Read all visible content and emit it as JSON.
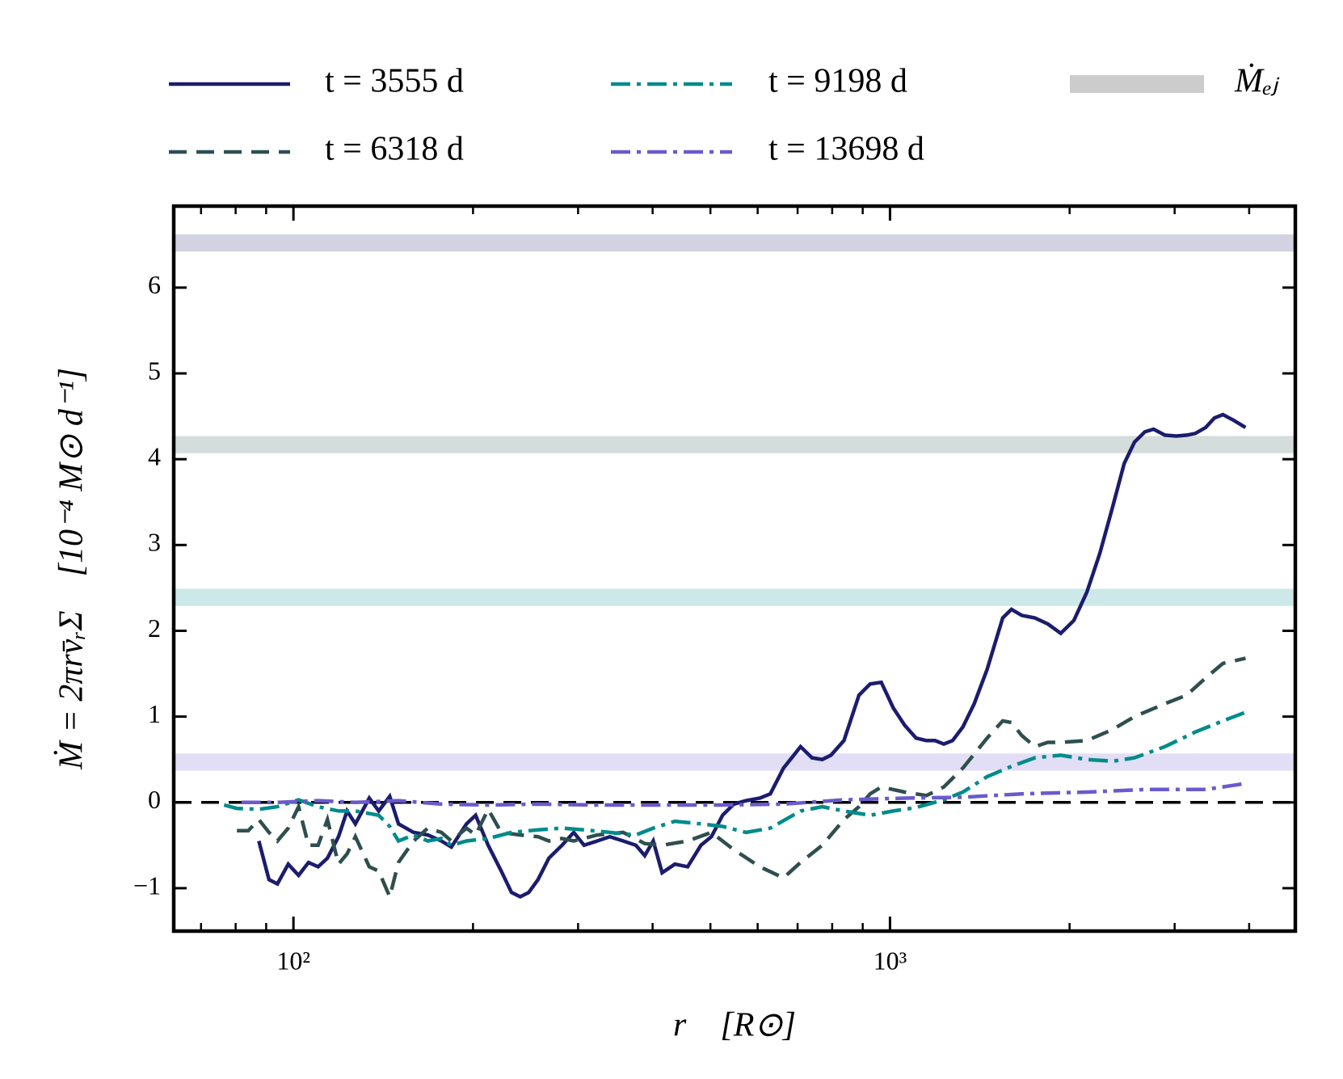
{
  "chart_data": {
    "type": "line",
    "xlabel": "r    [R⊙]",
    "ylabel": "Ṁ = 2πrv̄ᵣΣ    [10⁻⁴ M⊙ d⁻¹]",
    "xscale": "log",
    "xlim": [
      63,
      4780
    ],
    "ylim": [
      -1.5,
      6.95
    ],
    "xticks": [
      {
        "value": 100,
        "label": "10²"
      },
      {
        "value": 1000,
        "label": "10³"
      }
    ],
    "xminorticks": [
      70,
      80,
      90,
      200,
      300,
      400,
      500,
      600,
      700,
      800,
      900,
      2000,
      3000,
      4000
    ],
    "yticks": [
      {
        "value": -1,
        "label": "−1"
      },
      0,
      1,
      2,
      3,
      4,
      5,
      6
    ],
    "reference_line": 0,
    "ej_legend": {
      "label": "Ṁₑⱼ",
      "color": "#cccccc"
    },
    "series": [
      {
        "name": "t = 3555 d",
        "color": "#1c1c6e",
        "dash": "solid",
        "ej": 6.52,
        "x": [
          87.5,
          91,
          94,
          98,
          102,
          106,
          110,
          114,
          119,
          123,
          127,
          134,
          139,
          145,
          150,
          159,
          168,
          177,
          184,
          195,
          202,
          212,
          223,
          232,
          240,
          248,
          257,
          268,
          282,
          295,
          307,
          323,
          339,
          357,
          375,
          388,
          401,
          415,
          436,
          458,
          482,
          502,
          524,
          547,
          574,
          605,
          630,
          663,
          708,
          740,
          770,
          796,
          837,
          887,
          926,
          967,
          1013,
          1058,
          1106,
          1151,
          1190,
          1231,
          1273,
          1325,
          1384,
          1455,
          1545,
          1598,
          1663,
          1749,
          1839,
          1933,
          2033,
          2138,
          2247,
          2363,
          2469,
          2570,
          2675,
          2766,
          2889,
          3018,
          3142,
          3249,
          3382,
          3497,
          3615,
          3776,
          3944
        ],
        "values": [
          -0.45,
          -0.9,
          -0.95,
          -0.72,
          -0.85,
          -0.7,
          -0.75,
          -0.65,
          -0.4,
          -0.1,
          -0.25,
          0.05,
          -0.1,
          0.07,
          -0.25,
          -0.35,
          -0.38,
          -0.45,
          -0.52,
          -0.25,
          -0.15,
          -0.5,
          -0.8,
          -1.05,
          -1.1,
          -1.05,
          -0.9,
          -0.65,
          -0.5,
          -0.35,
          -0.5,
          -0.45,
          -0.4,
          -0.45,
          -0.5,
          -0.62,
          -0.45,
          -0.82,
          -0.72,
          -0.75,
          -0.5,
          -0.4,
          -0.15,
          -0.02,
          0.02,
          0.05,
          0.1,
          0.4,
          0.65,
          0.52,
          0.5,
          0.55,
          0.72,
          1.25,
          1.38,
          1.4,
          1.1,
          0.9,
          0.75,
          0.72,
          0.72,
          0.68,
          0.72,
          0.88,
          1.15,
          1.55,
          2.15,
          2.25,
          2.18,
          2.15,
          2.08,
          1.97,
          2.12,
          2.45,
          2.9,
          3.45,
          3.95,
          4.2,
          4.32,
          4.35,
          4.28,
          4.27,
          4.28,
          4.3,
          4.37,
          4.48,
          4.52,
          4.45,
          4.37
        ]
      },
      {
        "name": "t = 6318 d",
        "color": "#2f4f4f",
        "dash": "dashed",
        "ej": 4.17,
        "x": [
          80.4,
          84,
          87.5,
          91,
          94,
          98,
          102,
          106,
          110,
          114,
          119,
          123,
          127,
          134,
          139,
          145,
          150,
          159,
          168,
          177,
          184,
          195,
          202,
          212,
          223,
          240,
          257,
          268,
          282,
          295,
          323,
          357,
          388,
          415,
          458,
          502,
          547,
          605,
          663,
          708,
          770,
          837,
          887,
          926,
          967,
          1058,
          1151,
          1231,
          1325,
          1455,
          1545,
          1598,
          1663,
          1749,
          1839,
          1933,
          2138,
          2363,
          2570,
          2889,
          3142,
          3382,
          3615,
          3944
        ],
        "values": [
          -0.33,
          -0.33,
          -0.2,
          -0.35,
          -0.45,
          -0.3,
          -0.05,
          -0.5,
          -0.5,
          -0.2,
          -0.72,
          -0.6,
          -0.4,
          -0.75,
          -0.8,
          -1.1,
          -0.7,
          -0.45,
          -0.3,
          -0.35,
          -0.45,
          -0.3,
          -0.38,
          -0.08,
          -0.35,
          -0.38,
          -0.4,
          -0.45,
          -0.42,
          -0.45,
          -0.38,
          -0.35,
          -0.48,
          -0.5,
          -0.45,
          -0.35,
          -0.55,
          -0.75,
          -0.88,
          -0.7,
          -0.5,
          -0.2,
          -0.05,
          0.1,
          0.18,
          0.12,
          0.08,
          0.18,
          0.4,
          0.75,
          0.95,
          0.93,
          0.78,
          0.65,
          0.7,
          0.7,
          0.72,
          0.85,
          1.0,
          1.15,
          1.25,
          1.45,
          1.62,
          1.68
        ]
      },
      {
        "name": "t = 9198 d",
        "color": "#008b8b",
        "dash": "dashdot",
        "ej": 2.39,
        "x": [
          76.5,
          80.4,
          87.5,
          94,
          102,
          110,
          119,
          127,
          139,
          145,
          150,
          159,
          168,
          177,
          184,
          195,
          212,
          232,
          257,
          282,
          307,
          339,
          375,
          401,
          436,
          482,
          524,
          574,
          630,
          708,
          770,
          837,
          926,
          1013,
          1106,
          1231,
          1325,
          1455,
          1598,
          1749,
          1933,
          2138,
          2363,
          2570,
          2889,
          3249,
          3615,
          3944
        ],
        "values": [
          -0.03,
          -0.07,
          -0.08,
          -0.05,
          0.03,
          -0.05,
          -0.1,
          -0.1,
          -0.15,
          -0.28,
          -0.45,
          -0.38,
          -0.45,
          -0.42,
          -0.5,
          -0.45,
          -0.42,
          -0.35,
          -0.32,
          -0.3,
          -0.32,
          -0.35,
          -0.38,
          -0.3,
          -0.22,
          -0.25,
          -0.28,
          -0.35,
          -0.3,
          -0.1,
          -0.05,
          -0.1,
          -0.15,
          -0.1,
          -0.06,
          0.03,
          0.12,
          0.3,
          0.42,
          0.52,
          0.55,
          0.5,
          0.48,
          0.52,
          0.65,
          0.82,
          0.95,
          1.05
        ]
      },
      {
        "name": "t = 13698 d",
        "color": "#6a5acd",
        "dash": "dashdot",
        "ej": 0.47,
        "x": [
          81.8,
          94,
          110,
          127,
          150,
          177,
          212,
          257,
          323,
          415,
          524,
          663,
          837,
          1058,
          1325,
          1663,
          2138,
          2675,
          3382,
          3944
        ],
        "values": [
          0.0,
          0.0,
          0.02,
          0.0,
          0.02,
          -0.02,
          -0.03,
          -0.02,
          -0.03,
          -0.03,
          -0.03,
          -0.02,
          0.03,
          0.05,
          0.06,
          0.1,
          0.12,
          0.15,
          0.15,
          0.22
        ]
      }
    ]
  }
}
